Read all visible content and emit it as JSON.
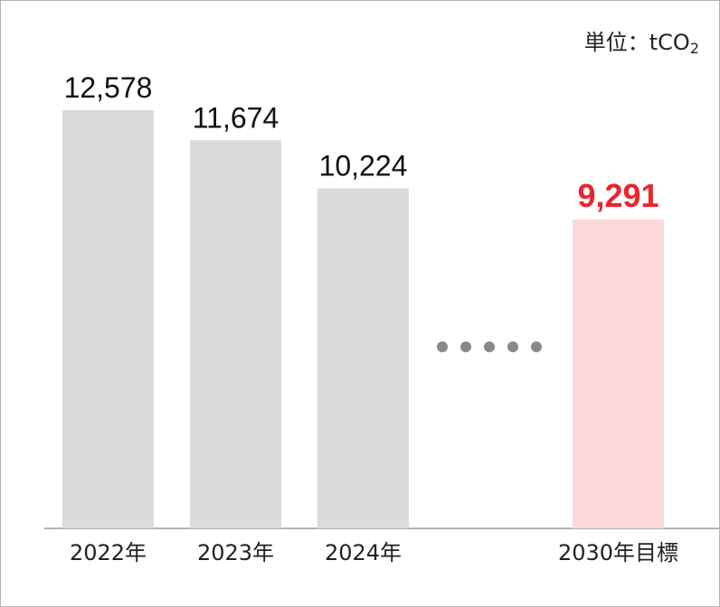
{
  "chart_data": {
    "type": "bar",
    "unit_label": "単位：tCO",
    "unit_subscript": "2",
    "categories": [
      "2022年",
      "2023年",
      "2024年",
      "",
      "2030年目標"
    ],
    "values": [
      12578,
      11674,
      10224,
      null,
      9291
    ],
    "value_labels": [
      "12,578",
      "11,674",
      "10,224",
      "",
      "9,291"
    ],
    "ylim": [
      0,
      12578
    ],
    "colors": {
      "actual": "#dcdadc",
      "target": "#fdd8d9",
      "target_label": "#e8262c",
      "baseline": "#999999",
      "dots": "#888888"
    }
  }
}
